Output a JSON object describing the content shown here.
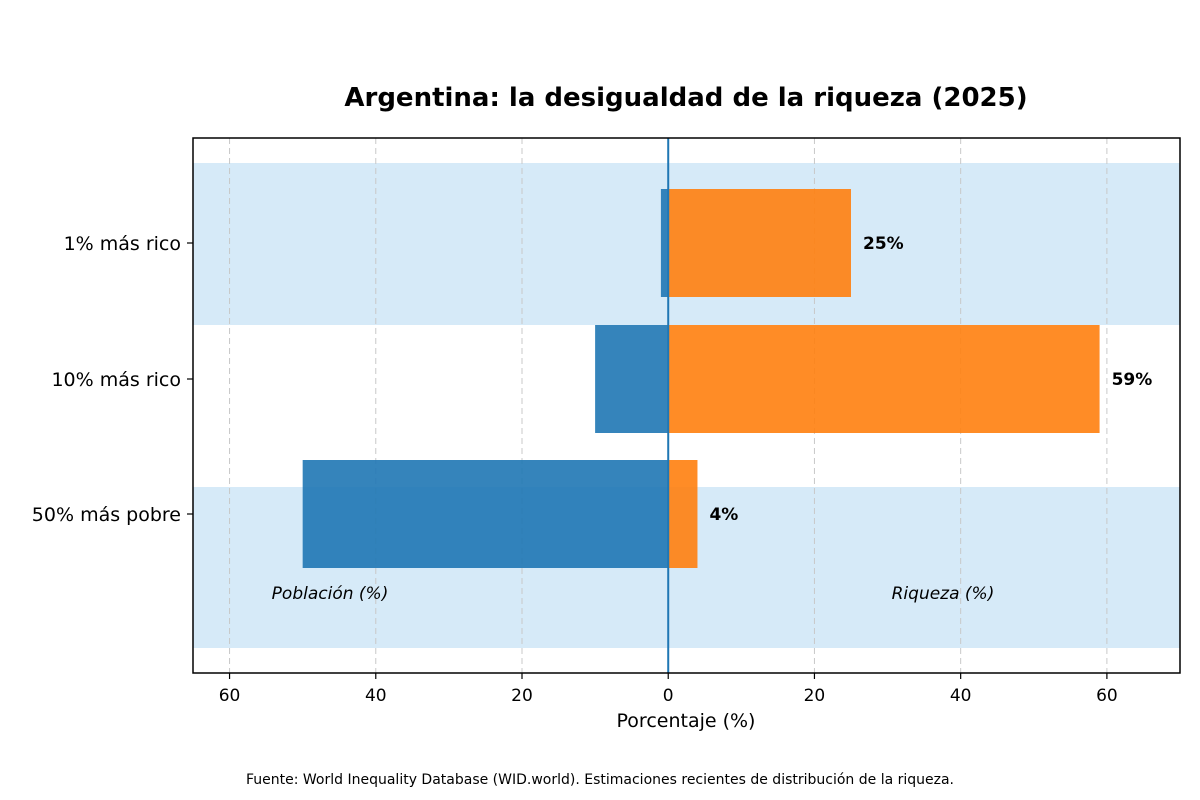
{
  "chart_data": {
    "type": "bar",
    "orientation": "horizontal",
    "title": "Argentina: la desigualdad de la riqueza (2025)",
    "xlabel": "Porcentaje (%)",
    "ylabel": "",
    "xlim": [
      -65,
      70
    ],
    "x_ticks": [
      -60,
      -40,
      -20,
      0,
      20,
      40,
      60
    ],
    "x_tick_labels": [
      "60",
      "40",
      "20",
      "0",
      "20",
      "40",
      "60"
    ],
    "grid": "vertical-dashed",
    "categories": [
      "1% más rico",
      "10% más rico",
      "50% más pobre"
    ],
    "series": [
      {
        "name": "Población (%)",
        "values": [
          1,
          10,
          50
        ],
        "color": "#1f77b4"
      },
      {
        "name": "Riqueza (%)",
        "values": [
          25,
          59,
          4
        ],
        "color": "#ff7f0e"
      }
    ],
    "data_labels": [
      "25%",
      "59%",
      "4%"
    ],
    "band_color": "#d6eaf8",
    "annotations": [
      "Población (%)",
      "Riqueza (%)"
    ],
    "source": "Fuente: World Inequality Database (WID.world). Estimaciones recientes de distribución de la riqueza."
  }
}
